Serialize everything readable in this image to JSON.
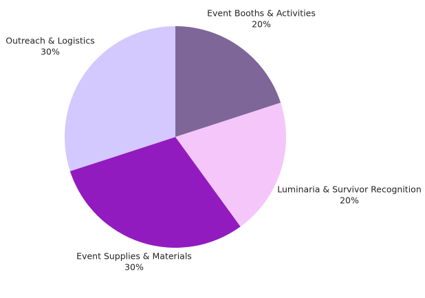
{
  "chart_data": {
    "type": "pie",
    "categories": [
      "Event Booths & Activities",
      "Luminaria & Survivor Recognition",
      "Event Supplies & Materials",
      "Outreach & Logistics"
    ],
    "values": [
      20,
      20,
      30,
      30
    ],
    "value_labels": [
      "20%",
      "20%",
      "30%",
      "30%"
    ],
    "colors": [
      "#7e6699",
      "#f5c6fa",
      "#921bbf",
      "#d3c9ff"
    ]
  }
}
